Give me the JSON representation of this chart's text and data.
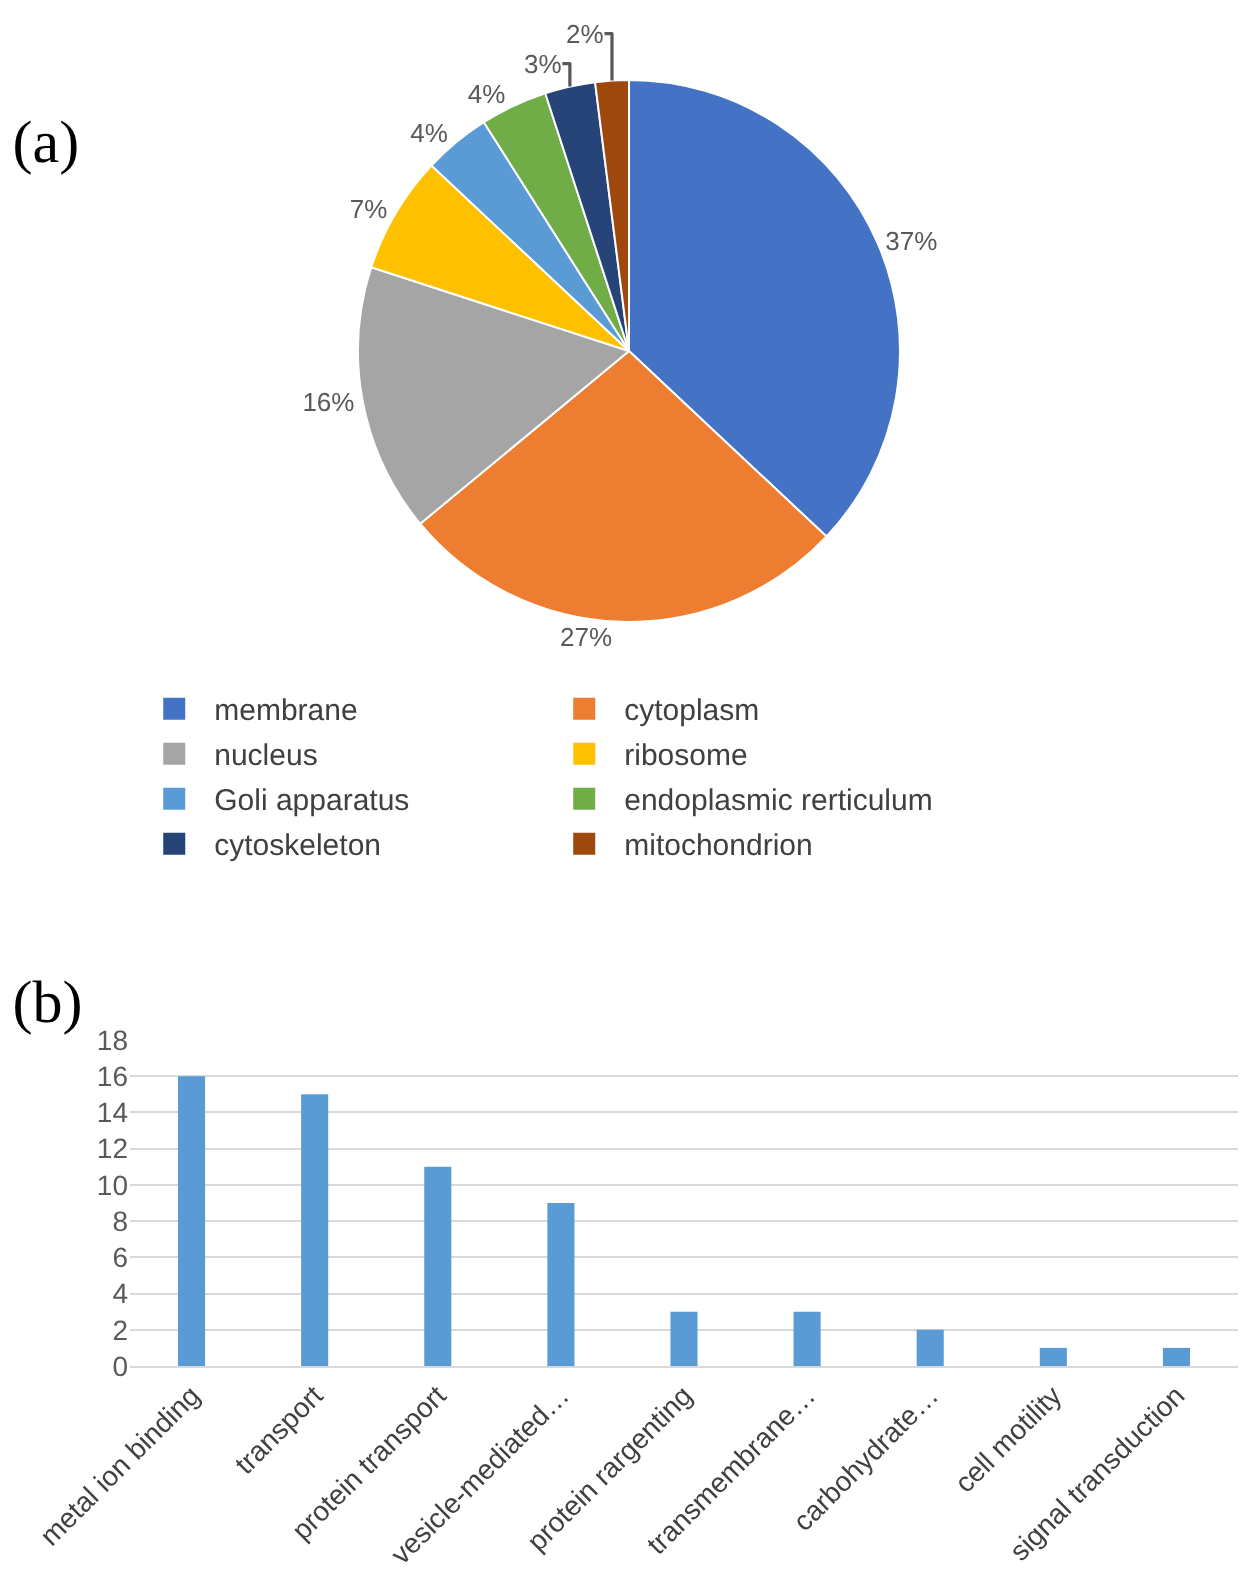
{
  "chart_data": [
    {
      "type": "pie",
      "title": "(a)",
      "categories": [
        "membrane",
        "cytoplasm",
        "nucleus",
        "ribosome",
        "Goli apparatus",
        "endoplasmic rerticulum",
        "cytoskeleton",
        "mitochondrion"
      ],
      "values": [
        37,
        27,
        16,
        7,
        4,
        4,
        3,
        2
      ],
      "value_labels": [
        "37%",
        "27%",
        "16%",
        "7%",
        "4%",
        "4%",
        "3%",
        "2%"
      ],
      "colors": [
        "#4472c4",
        "#ed7d31",
        "#a5a5a5",
        "#ffc000",
        "#5b9bd5",
        "#70ad47",
        "#264478",
        "#9e480e"
      ],
      "legend": "bottom"
    },
    {
      "type": "bar",
      "title": "(b)",
      "categories": [
        "metal ion binding",
        "transport",
        "protein transport",
        "vesicle-mediated…",
        "protein rargenting",
        "transmembrane…",
        "carbohydrate…",
        "cell motility",
        "signal transduction"
      ],
      "values": [
        16,
        15,
        11,
        9,
        3,
        3,
        2,
        1,
        1
      ],
      "color": "#5b9bd5",
      "ylim": [
        0,
        18
      ],
      "yticks": [
        0,
        2,
        4,
        6,
        8,
        10,
        12,
        14,
        16,
        18
      ],
      "grid": "y"
    }
  ]
}
